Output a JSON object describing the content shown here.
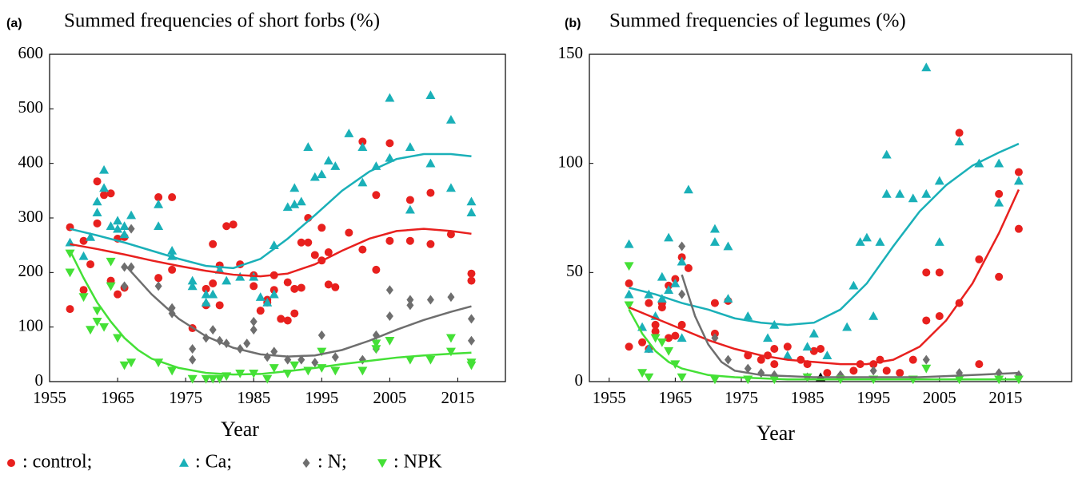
{
  "chart_data": [
    {
      "type": "scatter",
      "panel": "(a)",
      "title": "Summed frequencies of short forbs (%)",
      "x_label": "Year",
      "xlim": [
        1955,
        2022
      ],
      "xticks": [
        1955,
        1965,
        1975,
        1985,
        1995,
        2005,
        2015
      ],
      "ylim": [
        0,
        600
      ],
      "yticks": [
        0,
        100,
        200,
        300,
        400,
        500,
        600
      ],
      "series": [
        {
          "color": "#e8201e",
          "marker": "circle",
          "x": [
            1958,
            1958,
            1960,
            1960,
            1961,
            1962,
            1962,
            1963,
            1964,
            1964,
            1965,
            1965,
            1966,
            1966,
            1971,
            1971,
            1973,
            1973,
            1976,
            1978,
            1978,
            1979,
            1979,
            1980,
            1980,
            1981,
            1982,
            1983,
            1985,
            1985,
            1986,
            1987,
            1987,
            1988,
            1988,
            1989,
            1990,
            1990,
            1991,
            1991,
            1992,
            1992,
            1993,
            1993,
            1994,
            1995,
            1995,
            1996,
            1996,
            1997,
            1999,
            2001,
            2001,
            2003,
            2003,
            2005,
            2005,
            2008,
            2008,
            2011,
            2011,
            2014,
            2017,
            2017
          ],
          "values": [
            283,
            133,
            168,
            258,
            215,
            290,
            367,
            342,
            345,
            185,
            160,
            262,
            265,
            172,
            338,
            190,
            338,
            205,
            98,
            140,
            170,
            252,
            180,
            213,
            140,
            285,
            288,
            215,
            175,
            195,
            130,
            150,
            145,
            168,
            195,
            115,
            112,
            182,
            125,
            170,
            172,
            255,
            255,
            300,
            232,
            222,
            282,
            178,
            237,
            173,
            273,
            440,
            242,
            342,
            205,
            437,
            258,
            333,
            258,
            346,
            252,
            270,
            198,
            185
          ]
        },
        {
          "color": "#1ab0b8",
          "marker": "triangle-up",
          "x": [
            1958,
            1960,
            1961,
            1962,
            1962,
            1963,
            1963,
            1964,
            1965,
            1965,
            1966,
            1966,
            1967,
            1971,
            1971,
            1973,
            1973,
            1976,
            1976,
            1978,
            1978,
            1979,
            1980,
            1981,
            1983,
            1985,
            1986,
            1987,
            1988,
            1988,
            1990,
            1991,
            1991,
            1992,
            1993,
            1994,
            1995,
            1996,
            1997,
            1999,
            2001,
            2001,
            2003,
            2005,
            2005,
            2008,
            2008,
            2011,
            2011,
            2014,
            2014,
            2017,
            2017
          ],
          "values": [
            255,
            230,
            265,
            310,
            330,
            388,
            355,
            285,
            280,
            295,
            285,
            270,
            305,
            325,
            285,
            240,
            230,
            185,
            175,
            145,
            160,
            160,
            205,
            185,
            192,
            192,
            155,
            145,
            160,
            250,
            320,
            325,
            355,
            330,
            430,
            375,
            380,
            405,
            395,
            455,
            430,
            365,
            395,
            520,
            410,
            430,
            315,
            525,
            400,
            480,
            355,
            330,
            310
          ]
        },
        {
          "color": "#6e6e6e",
          "marker": "diamond",
          "x": [
            1966,
            1966,
            1967,
            1967,
            1971,
            1973,
            1973,
            1976,
            1976,
            1978,
            1979,
            1980,
            1981,
            1983,
            1984,
            1985,
            1985,
            1987,
            1988,
            1990,
            1992,
            1994,
            1995,
            1997,
            2001,
            2003,
            2003,
            2005,
            2005,
            2008,
            2008,
            2011,
            2014,
            2017,
            2017
          ],
          "values": [
            210,
            175,
            210,
            280,
            175,
            135,
            125,
            60,
            40,
            80,
            95,
            75,
            70,
            60,
            70,
            110,
            95,
            45,
            55,
            40,
            40,
            35,
            85,
            45,
            40,
            85,
            60,
            168,
            120,
            150,
            140,
            150,
            155,
            115,
            75
          ]
        },
        {
          "color": "#44e036",
          "marker": "triangle-down",
          "x": [
            1958,
            1958,
            1960,
            1961,
            1962,
            1962,
            1963,
            1964,
            1964,
            1965,
            1966,
            1967,
            1971,
            1973,
            1976,
            1978,
            1979,
            1980,
            1981,
            1983,
            1985,
            1987,
            1988,
            1990,
            1991,
            1993,
            1995,
            1995,
            1997,
            2001,
            2003,
            2003,
            2005,
            2008,
            2011,
            2014,
            2014,
            2017,
            2017
          ],
          "values": [
            235,
            200,
            155,
            95,
            110,
            130,
            100,
            220,
            175,
            80,
            30,
            35,
            35,
            20,
            5,
            5,
            5,
            5,
            10,
            15,
            15,
            5,
            25,
            15,
            30,
            20,
            55,
            25,
            20,
            20,
            60,
            70,
            75,
            40,
            40,
            55,
            80,
            35,
            30
          ]
        }
      ],
      "fits": [
        {
          "color": "#1ab0b8",
          "x": [
            1958,
            1962,
            1966,
            1970,
            1974,
            1978,
            1982,
            1986,
            1990,
            1994,
            1998,
            2002,
            2006,
            2010,
            2014,
            2017
          ],
          "values": [
            280,
            268,
            255,
            240,
            225,
            212,
            208,
            225,
            262,
            305,
            350,
            385,
            408,
            417,
            417,
            413
          ]
        },
        {
          "color": "#e8201e",
          "x": [
            1958,
            1962,
            1966,
            1970,
            1974,
            1978,
            1982,
            1986,
            1990,
            1994,
            1998,
            2002,
            2006,
            2010,
            2014,
            2017
          ],
          "values": [
            252,
            243,
            233,
            222,
            212,
            203,
            196,
            193,
            198,
            215,
            240,
            262,
            276,
            280,
            276,
            271
          ]
        },
        {
          "color": "#6e6e6e",
          "x": [
            1966,
            1970,
            1974,
            1978,
            1982,
            1986,
            1990,
            1994,
            1998,
            2002,
            2006,
            2010,
            2014,
            2017
          ],
          "values": [
            215,
            160,
            115,
            83,
            62,
            50,
            46,
            48,
            58,
            75,
            95,
            113,
            128,
            138
          ]
        },
        {
          "color": "#44e036",
          "x": [
            1958,
            1960,
            1962,
            1964,
            1966,
            1968,
            1970,
            1974,
            1978,
            1982,
            1986,
            1990,
            1994,
            1998,
            2002,
            2006,
            2010,
            2014,
            2017
          ],
          "values": [
            240,
            190,
            145,
            110,
            80,
            58,
            42,
            25,
            16,
            13,
            14,
            19,
            25,
            32,
            38,
            44,
            48,
            51,
            53
          ]
        }
      ]
    },
    {
      "type": "scatter",
      "panel": "(b)",
      "title": "Summed frequencies of legumes (%)",
      "x_label": "Year",
      "xlim": [
        1952,
        2025
      ],
      "xticks": [
        1955,
        1965,
        1975,
        1985,
        1995,
        2005,
        2015
      ],
      "ylim": [
        0,
        150
      ],
      "yticks": [
        0,
        50,
        100,
        150
      ],
      "series": [
        {
          "color": "#e8201e",
          "marker": "circle",
          "x": [
            1958,
            1958,
            1960,
            1961,
            1961,
            1962,
            1962,
            1963,
            1963,
            1964,
            1964,
            1965,
            1965,
            1966,
            1966,
            1967,
            1971,
            1971,
            1973,
            1976,
            1978,
            1979,
            1980,
            1980,
            1982,
            1984,
            1985,
            1986,
            1987,
            1988,
            1990,
            1992,
            1993,
            1995,
            1996,
            1997,
            1999,
            2001,
            2003,
            2003,
            2005,
            2005,
            2008,
            2008,
            2011,
            2011,
            2014,
            2014,
            2017,
            2017
          ],
          "values": [
            45,
            16,
            18,
            15,
            36,
            23,
            26,
            34,
            36,
            20,
            44,
            21,
            47,
            26,
            57,
            52,
            36,
            22,
            37,
            12,
            10,
            12,
            8,
            15,
            16,
            10,
            8,
            14,
            15,
            4,
            2,
            5,
            8,
            8,
            10,
            5,
            4,
            10,
            28,
            50,
            30,
            50,
            114,
            36,
            56,
            8,
            86,
            48,
            96,
            70
          ]
        },
        {
          "color": "#1ab0b8",
          "marker": "triangle-up",
          "x": [
            1958,
            1958,
            1960,
            1961,
            1961,
            1962,
            1963,
            1963,
            1964,
            1964,
            1965,
            1966,
            1966,
            1967,
            1971,
            1971,
            1973,
            1973,
            1976,
            1979,
            1980,
            1982,
            1985,
            1986,
            1988,
            1991,
            1992,
            1993,
            1994,
            1995,
            1996,
            1997,
            1997,
            1999,
            2001,
            2003,
            2003,
            2005,
            2005,
            2008,
            2011,
            2014,
            2014,
            2017
          ],
          "values": [
            63,
            40,
            25,
            15,
            40,
            30,
            48,
            38,
            66,
            42,
            45,
            55,
            20,
            88,
            70,
            64,
            62,
            38,
            30,
            20,
            26,
            12,
            16,
            22,
            12,
            25,
            44,
            64,
            66,
            30,
            64,
            104,
            86,
            86,
            84,
            144,
            86,
            92,
            64,
            110,
            100,
            100,
            82,
            92
          ]
        },
        {
          "color": "#6e6e6e",
          "marker": "diamond",
          "x": [
            1966,
            1966,
            1971,
            1973,
            1976,
            1978,
            1980,
            1985,
            1990,
            1995,
            2003,
            2008,
            2014,
            2017
          ],
          "values": [
            62,
            40,
            20,
            10,
            6,
            4,
            3,
            2,
            3,
            5,
            10,
            4,
            4,
            3
          ]
        },
        {
          "color": "#44e036",
          "marker": "triangle-down",
          "x": [
            1958,
            1958,
            1960,
            1961,
            1962,
            1963,
            1964,
            1965,
            1966,
            1971,
            1976,
            1980,
            1985,
            1990,
            1995,
            2001,
            2003,
            2008,
            2014,
            2017
          ],
          "values": [
            53,
            35,
            4,
            2,
            20,
            18,
            14,
            8,
            2,
            1,
            1,
            1,
            2,
            1,
            1,
            1,
            6,
            1,
            1,
            1
          ]
        },
        {
          "color": "#000000",
          "marker": "triangle-up",
          "x": [
            1987
          ],
          "values": [
            2
          ]
        }
      ],
      "fits": [
        {
          "color": "#1ab0b8",
          "x": [
            1958,
            1962,
            1966,
            1970,
            1974,
            1978,
            1982,
            1986,
            1990,
            1994,
            1998,
            2002,
            2006,
            2010,
            2014,
            2017
          ],
          "values": [
            43,
            40,
            36,
            33,
            29,
            27,
            26,
            27,
            33,
            45,
            62,
            78,
            90,
            99,
            105,
            109
          ]
        },
        {
          "color": "#e8201e",
          "x": [
            1958,
            1962,
            1966,
            1970,
            1974,
            1978,
            1982,
            1986,
            1990,
            1994,
            1998,
            2002,
            2006,
            2010,
            2014,
            2017
          ],
          "values": [
            34,
            29,
            24,
            19,
            15,
            12,
            10,
            9,
            8,
            8,
            10,
            16,
            28,
            45,
            68,
            88
          ]
        },
        {
          "color": "#6e6e6e",
          "x": [
            1966,
            1968,
            1970,
            1972,
            1974,
            1978,
            1986,
            1994,
            2002,
            2010,
            2017
          ],
          "values": [
            49,
            30,
            17,
            9,
            5,
            3,
            2,
            2,
            2,
            3,
            4
          ]
        },
        {
          "color": "#44e036",
          "x": [
            1958,
            1960,
            1962,
            1964,
            1966,
            1970,
            1974,
            1982,
            1994,
            2006,
            2017
          ],
          "values": [
            33,
            22,
            14,
            9,
            6,
            3,
            2,
            1,
            1,
            1,
            1
          ]
        }
      ]
    }
  ],
  "legend": [
    {
      "label": ": control;",
      "color": "#e8201e",
      "marker": "circle"
    },
    {
      "label": ": Ca;",
      "color": "#1ab0b8",
      "marker": "triangle-up"
    },
    {
      "label": ": N;",
      "color": "#6e6e6e",
      "marker": "diamond"
    },
    {
      "label": ": NPK",
      "color": "#44e036",
      "marker": "triangle-down"
    }
  ]
}
